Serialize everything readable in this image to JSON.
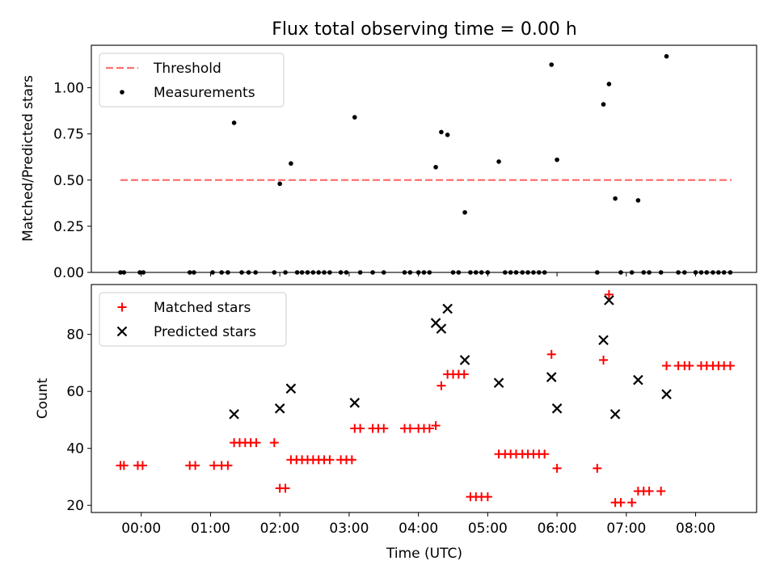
{
  "title": "Flux total observing time = 0.00 h",
  "xlabel": "Time (UTC)",
  "colors": {
    "threshold": "#ff7070",
    "measurement": "#000000",
    "matched": "#ff0000",
    "predicted": "#000000"
  },
  "chart_data": [
    {
      "type": "scatter",
      "ylabel": "Matched/Predicted stars",
      "xlim_hours": [
        -0.72,
        8.88
      ],
      "ylim": [
        0.0,
        1.23
      ],
      "yticks": [
        0.0,
        0.25,
        0.5,
        0.75,
        1.0
      ],
      "ytick_labels": [
        "0.00",
        "0.25",
        "0.50",
        "0.75",
        "1.00"
      ],
      "legend": [
        "Threshold",
        "Measurements"
      ],
      "threshold": {
        "x": [
          -0.3,
          8.52
        ],
        "y": 0.5
      },
      "series": [
        {
          "name": "Measurements",
          "x": [
            -0.3,
            -0.25,
            -0.02,
            0.03,
            0.7,
            0.76,
            1.03,
            1.16,
            1.25,
            1.34,
            1.45,
            1.55,
            1.65,
            1.92,
            2.0,
            2.08,
            2.16,
            2.25,
            2.32,
            2.4,
            2.48,
            2.56,
            2.64,
            2.72,
            2.88,
            2.96,
            3.08,
            3.16,
            3.34,
            3.5,
            3.8,
            3.88,
            4.0,
            4.08,
            4.16,
            4.25,
            4.33,
            4.42,
            4.5,
            4.58,
            4.67,
            4.75,
            4.83,
            4.91,
            5.0,
            5.16,
            5.25,
            5.33,
            5.41,
            5.5,
            5.58,
            5.66,
            5.74,
            5.82,
            5.92,
            6.0,
            6.58,
            6.67,
            6.75,
            6.84,
            6.92,
            7.08,
            7.17,
            7.25,
            7.33,
            7.5,
            7.58,
            7.75,
            7.84,
            8.0,
            8.08,
            8.16,
            8.25,
            8.33,
            8.41,
            8.5
          ],
          "y": [
            0,
            0,
            0,
            0,
            0,
            0,
            0,
            0,
            0,
            0.81,
            0,
            0,
            0,
            0,
            0.48,
            0,
            0.59,
            0,
            0,
            0,
            0,
            0,
            0,
            0,
            0,
            0,
            0.84,
            0,
            0,
            0,
            0,
            0,
            0,
            0,
            0,
            0.57,
            0.76,
            0.745,
            0,
            0,
            0.325,
            0,
            0,
            0,
            0,
            0.6,
            0,
            0,
            0,
            0,
            0,
            0,
            0,
            0,
            1.125,
            0.61,
            0,
            0.91,
            1.02,
            0.4,
            0,
            0,
            0.39,
            0,
            0,
            0,
            1.17,
            0,
            0,
            0,
            0,
            0,
            0,
            0,
            0,
            0
          ]
        }
      ]
    },
    {
      "type": "scatter",
      "ylabel": "Count",
      "xlim_hours": [
        -0.72,
        8.88
      ],
      "ylim": [
        17.5,
        97.5
      ],
      "yticks": [
        20,
        40,
        60,
        80
      ],
      "ytick_labels": [
        "20",
        "40",
        "60",
        "80"
      ],
      "xticks_hours": [
        0,
        1,
        2,
        3,
        4,
        5,
        6,
        7,
        8
      ],
      "xtick_labels": [
        "00:00",
        "01:00",
        "02:00",
        "03:00",
        "04:00",
        "05:00",
        "06:00",
        "07:00",
        "08:00"
      ],
      "legend": [
        "Matched stars",
        "Predicted stars"
      ],
      "series": [
        {
          "name": "Matched stars",
          "x": [
            -0.3,
            -0.25,
            -0.05,
            0.02,
            0.7,
            0.78,
            1.05,
            1.16,
            1.25,
            1.34,
            1.42,
            1.5,
            1.58,
            1.66,
            1.92,
            2.0,
            2.08,
            2.16,
            2.24,
            2.32,
            2.4,
            2.48,
            2.56,
            2.64,
            2.72,
            2.88,
            2.96,
            3.04,
            3.08,
            3.16,
            3.34,
            3.42,
            3.5,
            3.8,
            3.88,
            4.0,
            4.08,
            4.16,
            4.25,
            4.33,
            4.42,
            4.5,
            4.58,
            4.66,
            4.75,
            4.83,
            4.91,
            5.0,
            5.16,
            5.25,
            5.33,
            5.41,
            5.5,
            5.58,
            5.66,
            5.74,
            5.82,
            5.92,
            6.0,
            6.58,
            6.67,
            6.75,
            6.84,
            6.92,
            7.08,
            7.17,
            7.25,
            7.33,
            7.5,
            7.58,
            7.75,
            7.84,
            7.91,
            8.08,
            8.16,
            8.25,
            8.33,
            8.41,
            8.5
          ],
          "y": [
            34,
            34,
            34,
            34,
            34,
            34,
            34,
            34,
            34,
            42,
            42,
            42,
            42,
            42,
            42,
            26,
            26,
            36,
            36,
            36,
            36,
            36,
            36,
            36,
            36,
            36,
            36,
            36,
            47,
            47,
            47,
            47,
            47,
            47,
            47,
            47,
            47,
            47,
            48,
            62,
            66,
            66,
            66,
            66,
            23,
            23,
            23,
            23,
            38,
            38,
            38,
            38,
            38,
            38,
            38,
            38,
            38,
            73,
            33,
            33,
            71,
            94,
            21,
            21,
            21,
            25,
            25,
            25,
            25,
            69,
            69,
            69,
            69,
            69,
            69,
            69,
            69,
            69,
            69
          ],
          "x_fix": [
            -0.3,
            -0.25,
            -0.05,
            0.02,
            0.7,
            0.78,
            1.05,
            1.16,
            1.25,
            1.34,
            1.42,
            1.5,
            1.58,
            1.66,
            1.92,
            2.0,
            2.08,
            2.16,
            2.24,
            2.32,
            2.4,
            2.48,
            2.56,
            2.64,
            2.72,
            2.88,
            2.96,
            3.04,
            3.08,
            3.16,
            3.34,
            3.42,
            3.5,
            3.8,
            3.88,
            4.0,
            4.08,
            4.16,
            4.25,
            4.33,
            4.42,
            4.5,
            4.58,
            4.66,
            4.75,
            4.83,
            4.91,
            5.0,
            5.16,
            5.25,
            5.33,
            5.41,
            5.5,
            5.58,
            5.66,
            5.74,
            5.82,
            5.92,
            6.0,
            6.58,
            6.67,
            6.75,
            6.84,
            6.92,
            7.08,
            7.17,
            7.25,
            7.33,
            7.5,
            7.58,
            7.75,
            7.84,
            7.91,
            8.08,
            8.16,
            8.25,
            8.33,
            8.41,
            8.5
          ]
        },
        {
          "name": "Predicted stars",
          "x": [
            1.34,
            2.0,
            2.16,
            3.08,
            4.25,
            4.33,
            4.42,
            4.67,
            5.16,
            5.92,
            6.0,
            6.67,
            6.75,
            6.84,
            7.17,
            7.58
          ],
          "y": [
            52,
            54,
            61,
            56,
            84,
            82,
            89,
            71,
            63,
            65,
            54,
            78,
            92,
            52,
            64,
            59
          ]
        }
      ]
    }
  ]
}
